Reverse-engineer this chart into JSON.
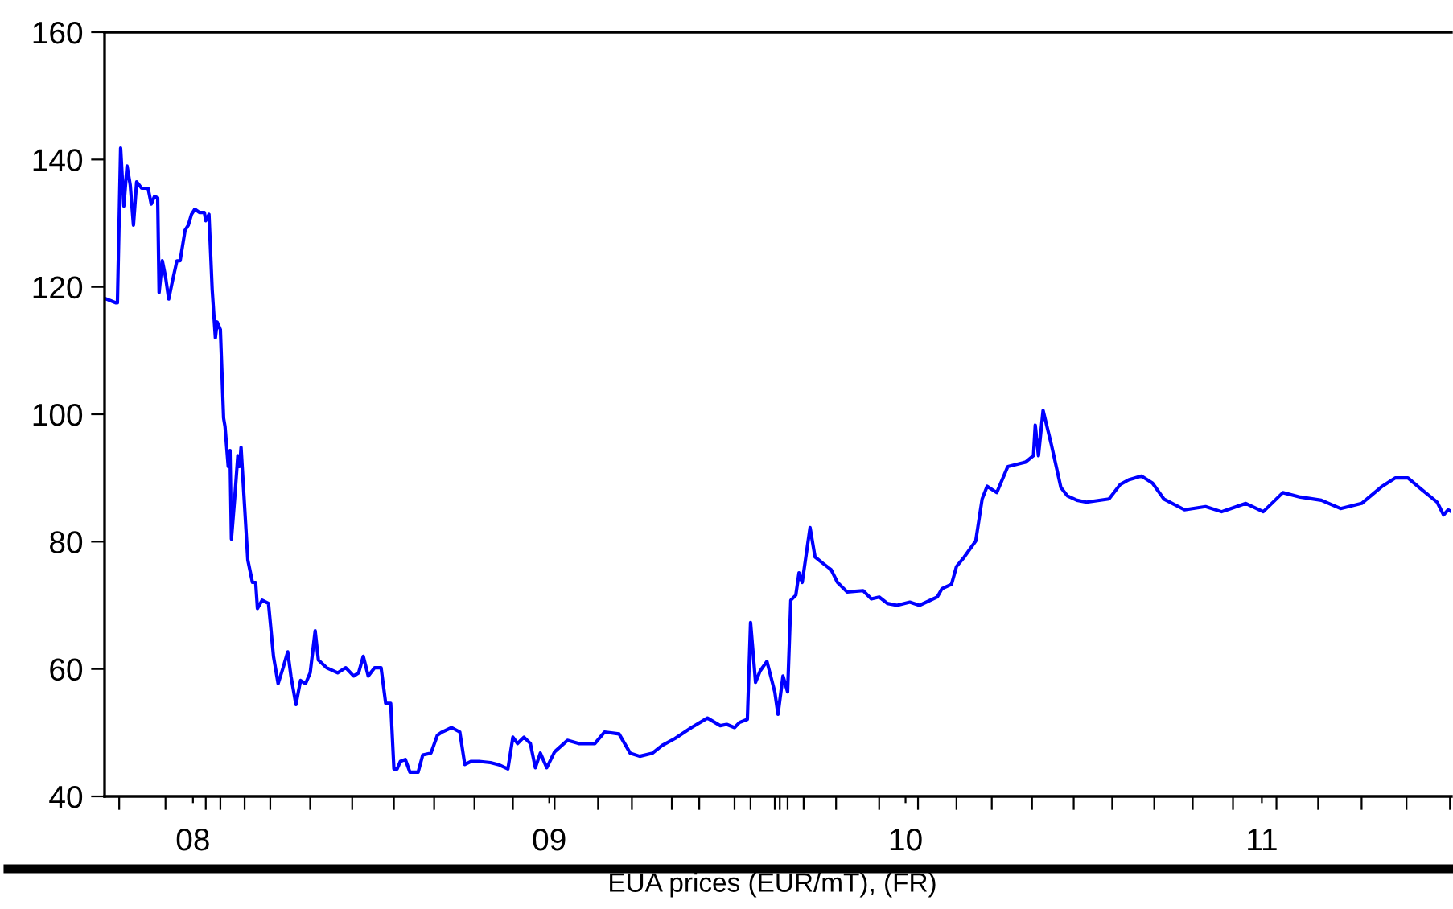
{
  "chart_data": {
    "type": "line",
    "xlabel": "EUA prices (EUR/mT), (FR)",
    "x": [
      7.757,
      7.784,
      7.788,
      7.797,
      7.806,
      7.815,
      7.824,
      7.833,
      7.842,
      7.856,
      7.874,
      7.883,
      7.892,
      7.901,
      7.905,
      7.914,
      7.923,
      7.932,
      7.942,
      7.955,
      7.964,
      7.978,
      7.987,
      7.996,
      8.005,
      8.018,
      8.032,
      8.036,
      8.045,
      8.054,
      8.063,
      8.068,
      8.077,
      8.086,
      8.09,
      8.099,
      8.104,
      8.108,
      8.117,
      8.126,
      8.131,
      8.135,
      8.145,
      8.154,
      8.167,
      8.176,
      8.181,
      8.194,
      8.212,
      8.226,
      8.239,
      8.253,
      8.266,
      8.275,
      8.289,
      8.302,
      8.316,
      8.329,
      8.343,
      8.352,
      8.375,
      8.406,
      8.429,
      8.451,
      8.465,
      8.478,
      8.492,
      8.51,
      8.528,
      8.541,
      8.555,
      8.564,
      8.573,
      8.582,
      8.596,
      8.609,
      8.632,
      8.645,
      8.668,
      8.686,
      8.699,
      8.726,
      8.749,
      8.763,
      8.781,
      8.803,
      8.835,
      8.857,
      8.884,
      8.898,
      8.911,
      8.929,
      8.947,
      8.961,
      8.975,
      8.993,
      9.015,
      9.051,
      9.083,
      9.128,
      9.155,
      9.196,
      9.227,
      9.254,
      9.29,
      9.317,
      9.353,
      9.399,
      9.444,
      9.48,
      9.498,
      9.52,
      9.534,
      9.556,
      9.565,
      9.579,
      9.592,
      9.611,
      9.633,
      9.642,
      9.656,
      9.669,
      9.678,
      9.692,
      9.701,
      9.71,
      9.732,
      9.746,
      9.768,
      9.791,
      9.809,
      9.836,
      9.881,
      9.904,
      9.926,
      9.949,
      9.976,
      10.012,
      10.039,
      10.089,
      10.102,
      10.129,
      10.143,
      10.165,
      10.197,
      10.215,
      10.229,
      10.256,
      10.287,
      10.337,
      10.359,
      10.364,
      10.373,
      10.386,
      10.409,
      10.436,
      10.454,
      10.481,
      10.508,
      10.571,
      10.603,
      10.626,
      10.662,
      10.693,
      10.725,
      10.783,
      10.842,
      10.887,
      10.955,
      11.004,
      11.059,
      11.108,
      11.167,
      11.221,
      11.28,
      11.338,
      11.374,
      11.41,
      11.442,
      11.492,
      11.51,
      11.523,
      11.532
    ],
    "series": [
      {
        "color": "#0000ff",
        "values": [
          118.1,
          117.5,
          117.5,
          141.8,
          132.7,
          139.0,
          136.0,
          129.7,
          136.5,
          135.5,
          135.5,
          133.0,
          134.2,
          134.0,
          119.1,
          124.1,
          121.6,
          118.1,
          120.8,
          124.1,
          124.1,
          128.9,
          129.7,
          131.4,
          132.2,
          131.7,
          131.7,
          130.4,
          131.4,
          119.6,
          112.0,
          114.5,
          113.3,
          99.4,
          98.1,
          91.8,
          94.3,
          80.4,
          86.7,
          93.5,
          91.8,
          94.8,
          85.5,
          77.1,
          73.6,
          73.6,
          69.5,
          70.8,
          70.3,
          62.0,
          57.7,
          60.2,
          62.7,
          58.9,
          54.4,
          58.2,
          57.7,
          59.4,
          66.0,
          61.4,
          60.2,
          59.4,
          60.2,
          58.9,
          59.4,
          62.0,
          58.9,
          60.2,
          60.2,
          54.6,
          54.6,
          44.3,
          44.3,
          45.5,
          45.8,
          43.8,
          43.8,
          46.5,
          46.8,
          49.6,
          50.1,
          50.8,
          50.1,
          45.0,
          45.5,
          45.5,
          45.3,
          45.0,
          44.3,
          49.3,
          48.3,
          49.3,
          48.3,
          44.5,
          46.8,
          44.5,
          47.0,
          48.8,
          48.3,
          48.3,
          50.1,
          49.8,
          46.8,
          46.3,
          46.8,
          48.0,
          49.1,
          50.8,
          52.3,
          51.1,
          51.3,
          50.8,
          51.6,
          52.1,
          67.3,
          57.9,
          59.7,
          61.2,
          56.4,
          52.9,
          58.9,
          56.4,
          70.8,
          71.6,
          75.1,
          73.6,
          82.2,
          77.6,
          76.6,
          75.6,
          73.6,
          72.1,
          72.3,
          71.0,
          71.3,
          70.3,
          70.0,
          70.5,
          70.0,
          71.3,
          72.6,
          73.3,
          76.1,
          77.6,
          80.1,
          86.7,
          88.7,
          87.7,
          91.8,
          92.5,
          93.5,
          98.3,
          93.5,
          100.6,
          95.3,
          88.5,
          87.2,
          86.5,
          86.2,
          86.7,
          89.0,
          89.7,
          90.3,
          89.2,
          86.7,
          85.0,
          85.5,
          84.7,
          86.0,
          84.7,
          87.7,
          87.0,
          86.5,
          85.2,
          86.0,
          88.7,
          90.0,
          90.0,
          88.5,
          86.2,
          84.2,
          85.0,
          84.7
        ]
      }
    ],
    "xlim": [
      7.752,
      11.532
    ],
    "xticks": [
      {
        "value": 8,
        "label": "08"
      },
      {
        "value": 9,
        "label": "09"
      },
      {
        "value": 10,
        "label": "10"
      },
      {
        "value": 11,
        "label": "11"
      },
      {
        "value": 7.793,
        "label": null
      },
      {
        "value": 7.923,
        "label": null
      },
      {
        "value": 8.036,
        "label": null
      },
      {
        "value": 8.077,
        "label": null
      },
      {
        "value": 8.145,
        "label": null
      },
      {
        "value": 8.217,
        "label": null
      },
      {
        "value": 8.329,
        "label": null
      },
      {
        "value": 8.447,
        "label": null
      },
      {
        "value": 8.564,
        "label": null
      },
      {
        "value": 8.677,
        "label": null
      },
      {
        "value": 8.79,
        "label": null
      },
      {
        "value": 8.898,
        "label": null
      },
      {
        "value": 9.015,
        "label": null
      },
      {
        "value": 9.137,
        "label": null
      },
      {
        "value": 9.232,
        "label": null
      },
      {
        "value": 9.344,
        "label": null
      },
      {
        "value": 9.421,
        "label": null
      },
      {
        "value": 9.52,
        "label": null
      },
      {
        "value": 9.565,
        "label": null
      },
      {
        "value": 9.633,
        "label": null
      },
      {
        "value": 9.647,
        "label": null
      },
      {
        "value": 9.669,
        "label": null
      },
      {
        "value": 9.714,
        "label": null
      },
      {
        "value": 9.805,
        "label": null
      },
      {
        "value": 9.926,
        "label": null
      },
      {
        "value": 10.035,
        "label": null
      },
      {
        "value": 10.143,
        "label": null
      },
      {
        "value": 10.242,
        "label": null
      },
      {
        "value": 10.355,
        "label": null
      },
      {
        "value": 10.472,
        "label": null
      },
      {
        "value": 10.58,
        "label": null
      },
      {
        "value": 10.698,
        "label": null
      },
      {
        "value": 10.806,
        "label": null
      },
      {
        "value": 10.919,
        "label": null
      },
      {
        "value": 11.041,
        "label": null
      },
      {
        "value": 11.158,
        "label": null
      },
      {
        "value": 11.28,
        "label": null
      },
      {
        "value": 11.406,
        "label": null
      },
      {
        "value": 11.528,
        "label": null
      }
    ],
    "ylim": [
      40,
      160
    ],
    "yticks": [
      40,
      60,
      80,
      100,
      120,
      140,
      160
    ],
    "marker": "none",
    "line_style": "solid"
  }
}
